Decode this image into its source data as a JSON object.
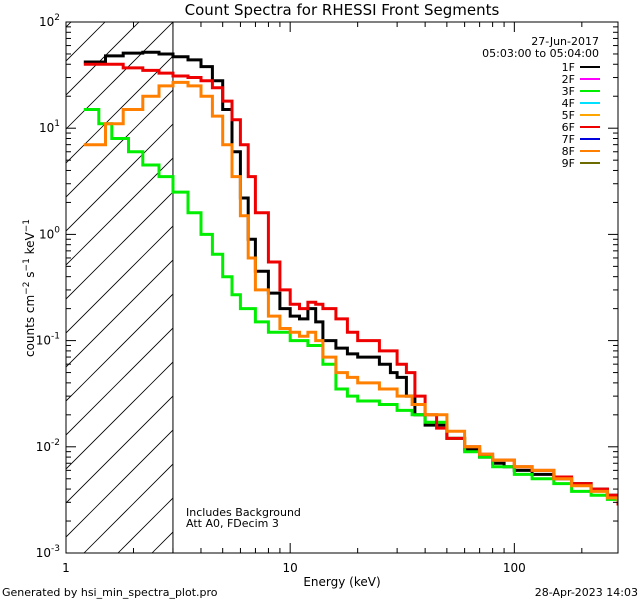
{
  "chart_data": {
    "type": "line",
    "title": "Count Spectra for RHESSI Front Segments",
    "xlabel": "Energy (keV)",
    "ylabel": "counts cm^-2 s^-1 keV^-1",
    "x_scale": "log",
    "y_scale": "log",
    "xlim": [
      1.0,
      290.0
    ],
    "ylim": [
      0.001,
      100.0
    ],
    "x_ticks": [
      {
        "value": 1,
        "label": "1"
      },
      {
        "value": 10,
        "label": "10"
      },
      {
        "value": 100,
        "label": "100"
      }
    ],
    "y_ticks": [
      {
        "value": 0.001,
        "mant": "10",
        "exp": "-3"
      },
      {
        "value": 0.01,
        "mant": "10",
        "exp": "-2"
      },
      {
        "value": 0.1,
        "mant": "10",
        "exp": "-1"
      },
      {
        "value": 1,
        "mant": "10",
        "exp": "0"
      },
      {
        "value": 10,
        "mant": "10",
        "exp": "1"
      },
      {
        "value": 100,
        "mant": "10",
        "exp": "2"
      }
    ],
    "shaded_region": {
      "from": 1.0,
      "to": 3.0,
      "pattern": "diagonal hatching"
    },
    "date": "27-Jun-2017",
    "time_range": "05:03:00 to 05:04:00",
    "notes": [
      "Includes Background",
      "Att A0, FDecim 3"
    ],
    "legend_position": "top-right",
    "series": [
      {
        "name": "1F",
        "color": "#000000",
        "points": [
          [
            1.2,
            42
          ],
          [
            1.5,
            48
          ],
          [
            1.8,
            51
          ],
          [
            2.2,
            52
          ],
          [
            2.6,
            50
          ],
          [
            3.0,
            47
          ],
          [
            3.5,
            44
          ],
          [
            4.0,
            38
          ],
          [
            4.5,
            28
          ],
          [
            5.0,
            15
          ],
          [
            5.5,
            6
          ],
          [
            6.0,
            2.2
          ],
          [
            6.5,
            0.9
          ],
          [
            7.0,
            0.45
          ],
          [
            8.0,
            0.28
          ],
          [
            9.0,
            0.2
          ],
          [
            10.0,
            0.17
          ],
          [
            11.0,
            0.16
          ],
          [
            12.0,
            0.2
          ],
          [
            13.0,
            0.15
          ],
          [
            14.0,
            0.1
          ],
          [
            16.0,
            0.085
          ],
          [
            18.0,
            0.075
          ],
          [
            20.0,
            0.07
          ],
          [
            22.0,
            0.07
          ],
          [
            25.0,
            0.06
          ],
          [
            28.0,
            0.05
          ],
          [
            30.0,
            0.045
          ],
          [
            33.0,
            0.03
          ],
          [
            36.0,
            0.02
          ],
          [
            40.0,
            0.016
          ],
          [
            50.0,
            0.012
          ],
          [
            60.0,
            0.0095
          ],
          [
            70.0,
            0.008
          ],
          [
            80.0,
            0.007
          ],
          [
            90.0,
            0.0065
          ],
          [
            100.0,
            0.006
          ],
          [
            120.0,
            0.0055
          ],
          [
            150.0,
            0.005
          ],
          [
            180.0,
            0.0045
          ],
          [
            220.0,
            0.004
          ],
          [
            260.0,
            0.0035
          ],
          [
            290.0,
            0.003
          ]
        ]
      },
      {
        "name": "2F",
        "color": "#ff00ff",
        "points": []
      },
      {
        "name": "3F",
        "color": "#00ee00",
        "points": [
          [
            1.2,
            15
          ],
          [
            1.4,
            11
          ],
          [
            1.6,
            8
          ],
          [
            1.9,
            6
          ],
          [
            2.2,
            4.5
          ],
          [
            2.6,
            3.5
          ],
          [
            3.0,
            2.5
          ],
          [
            3.5,
            1.6
          ],
          [
            4.0,
            1.0
          ],
          [
            4.5,
            0.65
          ],
          [
            5.0,
            0.4
          ],
          [
            5.5,
            0.27
          ],
          [
            6.0,
            0.2
          ],
          [
            7.0,
            0.15
          ],
          [
            8.0,
            0.12
          ],
          [
            10.0,
            0.1
          ],
          [
            12.0,
            0.09
          ],
          [
            14.0,
            0.06
          ],
          [
            16.0,
            0.035
          ],
          [
            18.0,
            0.03
          ],
          [
            20.0,
            0.027
          ],
          [
            25.0,
            0.025
          ],
          [
            30.0,
            0.022
          ],
          [
            35.0,
            0.02
          ],
          [
            40.0,
            0.017
          ],
          [
            50.0,
            0.012
          ],
          [
            60.0,
            0.009
          ],
          [
            70.0,
            0.008
          ],
          [
            80.0,
            0.0065
          ],
          [
            100.0,
            0.0055
          ],
          [
            120.0,
            0.005
          ],
          [
            150.0,
            0.0045
          ],
          [
            180.0,
            0.0038
          ],
          [
            220.0,
            0.0035
          ],
          [
            260.0,
            0.0032
          ],
          [
            290.0,
            0.003
          ]
        ]
      },
      {
        "name": "4F",
        "color": "#00e0ff",
        "points": []
      },
      {
        "name": "5F",
        "color": "#ffa500",
        "points": []
      },
      {
        "name": "6F",
        "color": "#ee0000",
        "points": [
          [
            1.2,
            40
          ],
          [
            1.5,
            40
          ],
          [
            1.8,
            37
          ],
          [
            2.2,
            35
          ],
          [
            2.6,
            33
          ],
          [
            3.0,
            31
          ],
          [
            3.5,
            30
          ],
          [
            4.0,
            28
          ],
          [
            4.5,
            24
          ],
          [
            5.0,
            18
          ],
          [
            5.5,
            12
          ],
          [
            6.0,
            7
          ],
          [
            6.5,
            3.5
          ],
          [
            7.0,
            1.6
          ],
          [
            8.0,
            0.55
          ],
          [
            9.0,
            0.3
          ],
          [
            10.0,
            0.22
          ],
          [
            11.0,
            0.2
          ],
          [
            12.0,
            0.23
          ],
          [
            13.0,
            0.22
          ],
          [
            14.0,
            0.2
          ],
          [
            16.0,
            0.16
          ],
          [
            18.0,
            0.12
          ],
          [
            20.0,
            0.1
          ],
          [
            25.0,
            0.08
          ],
          [
            30.0,
            0.06
          ],
          [
            33.0,
            0.05
          ],
          [
            36.0,
            0.03
          ],
          [
            40.0,
            0.02
          ],
          [
            45.0,
            0.015
          ],
          [
            50.0,
            0.012
          ],
          [
            60.0,
            0.01
          ],
          [
            70.0,
            0.0085
          ],
          [
            80.0,
            0.0075
          ],
          [
            100.0,
            0.0065
          ],
          [
            120.0,
            0.006
          ],
          [
            150.0,
            0.0052
          ],
          [
            180.0,
            0.0045
          ],
          [
            220.0,
            0.004
          ],
          [
            260.0,
            0.0035
          ],
          [
            290.0,
            0.0028
          ]
        ]
      },
      {
        "name": "7F",
        "color": "#0000dd",
        "points": []
      },
      {
        "name": "8F",
        "color": "#ff8000",
        "points": [
          [
            1.2,
            7
          ],
          [
            1.5,
            11
          ],
          [
            1.8,
            15
          ],
          [
            2.2,
            20
          ],
          [
            2.6,
            25
          ],
          [
            3.0,
            27
          ],
          [
            3.5,
            25
          ],
          [
            4.0,
            20
          ],
          [
            4.5,
            13
          ],
          [
            5.0,
            7
          ],
          [
            5.5,
            3.5
          ],
          [
            6.0,
            1.5
          ],
          [
            6.5,
            0.6
          ],
          [
            7.0,
            0.3
          ],
          [
            8.0,
            0.17
          ],
          [
            9.0,
            0.13
          ],
          [
            10.0,
            0.12
          ],
          [
            11.0,
            0.11
          ],
          [
            12.0,
            0.12
          ],
          [
            13.0,
            0.1
          ],
          [
            14.0,
            0.07
          ],
          [
            16.0,
            0.05
          ],
          [
            18.0,
            0.045
          ],
          [
            20.0,
            0.04
          ],
          [
            25.0,
            0.035
          ],
          [
            30.0,
            0.03
          ],
          [
            35.0,
            0.025
          ],
          [
            40.0,
            0.02
          ],
          [
            50.0,
            0.014
          ],
          [
            60.0,
            0.01
          ],
          [
            70.0,
            0.0085
          ],
          [
            80.0,
            0.0075
          ],
          [
            100.0,
            0.0065
          ],
          [
            120.0,
            0.006
          ],
          [
            150.0,
            0.005
          ],
          [
            180.0,
            0.0043
          ],
          [
            220.0,
            0.0038
          ],
          [
            260.0,
            0.0033
          ],
          [
            290.0,
            0.003
          ]
        ]
      },
      {
        "name": "9F",
        "color": "#6b6b00",
        "points": []
      }
    ]
  },
  "footer": {
    "left": "Generated by hsi_min_spectra_plot.pro",
    "right": "28-Apr-2023 14:03"
  }
}
